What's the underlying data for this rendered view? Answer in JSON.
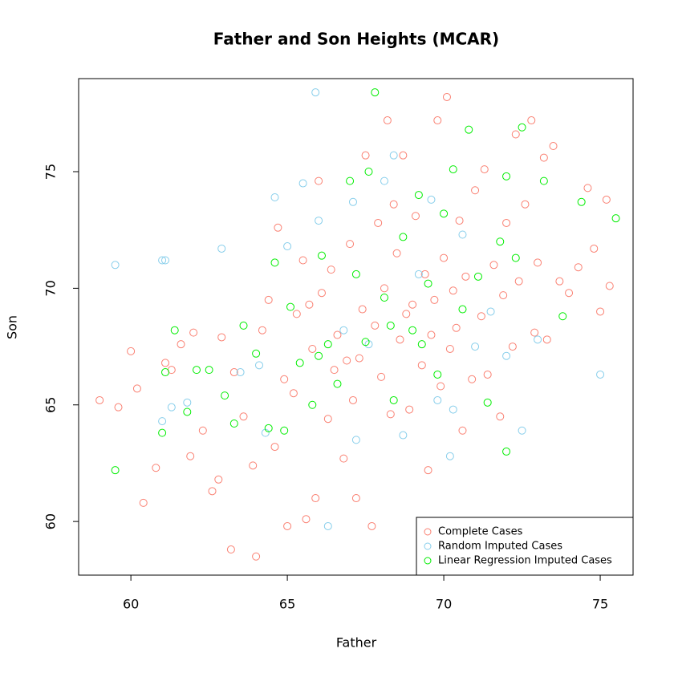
{
  "chart_data": {
    "type": "scatter",
    "title": "Father and Son Heights (MCAR)",
    "x_label": "Father",
    "y_label": "Son",
    "xlim": [
      58.33,
      76.05
    ],
    "ylim": [
      57.7,
      78.99
    ],
    "xticks": [
      60,
      65,
      70,
      75
    ],
    "yticks": [
      60,
      65,
      70,
      75
    ],
    "legend": "bottom-right",
    "series": [
      {
        "name": "Complete Cases",
        "color": "#FA8072",
        "x": [
          59.0,
          59.6,
          60.0,
          60.4,
          60.2,
          60.8,
          61.1,
          61.3,
          61.6,
          61.9,
          62.0,
          62.3,
          62.6,
          62.8,
          62.9,
          63.2,
          63.3,
          63.6,
          63.9,
          64.0,
          64.2,
          64.4,
          64.6,
          64.7,
          64.9,
          65.0,
          65.2,
          65.3,
          65.5,
          65.6,
          65.8,
          65.9,
          66.0,
          66.1,
          66.3,
          66.4,
          66.6,
          66.8,
          66.9,
          67.0,
          67.1,
          67.2,
          67.4,
          67.5,
          67.7,
          67.8,
          67.9,
          68.0,
          68.1,
          68.2,
          68.3,
          68.5,
          68.6,
          68.7,
          68.9,
          69.0,
          69.1,
          69.3,
          69.4,
          69.5,
          69.6,
          69.8,
          69.9,
          70.0,
          70.1,
          70.2,
          70.3,
          70.5,
          70.6,
          70.7,
          70.9,
          71.0,
          71.2,
          71.3,
          71.4,
          71.6,
          71.8,
          71.9,
          72.0,
          72.2,
          72.3,
          72.4,
          72.6,
          72.8,
          72.9,
          73.0,
          73.2,
          73.3,
          73.5,
          73.7,
          74.0,
          74.3,
          74.6,
          74.8,
          75.0,
          75.2,
          75.3,
          68.8,
          67.3,
          66.5,
          69.7,
          70.4,
          65.7,
          68.4
        ],
        "values": [
          65.2,
          64.9,
          67.3,
          60.8,
          65.7,
          62.3,
          66.8,
          66.5,
          67.6,
          62.8,
          68.1,
          63.9,
          61.3,
          61.8,
          67.9,
          58.8,
          66.4,
          64.5,
          62.4,
          58.5,
          68.2,
          69.5,
          63.2,
          72.6,
          66.1,
          59.8,
          65.5,
          68.9,
          71.2,
          60.1,
          67.4,
          61.0,
          74.6,
          69.8,
          64.4,
          70.8,
          68.0,
          62.7,
          66.9,
          71.9,
          65.2,
          61.0,
          69.1,
          75.7,
          59.8,
          68.4,
          72.8,
          66.2,
          70.0,
          77.2,
          64.6,
          71.5,
          67.8,
          75.7,
          64.8,
          69.3,
          73.1,
          66.7,
          70.6,
          62.2,
          68.0,
          77.2,
          65.8,
          71.3,
          78.2,
          67.4,
          69.9,
          72.9,
          63.9,
          70.5,
          66.1,
          74.2,
          68.8,
          75.1,
          66.3,
          71.0,
          64.5,
          69.7,
          72.8,
          67.5,
          76.6,
          70.3,
          73.6,
          77.2,
          68.1,
          71.1,
          75.6,
          67.8,
          76.1,
          70.3,
          69.8,
          70.9,
          74.3,
          71.7,
          69.0,
          73.8,
          70.1,
          68.9,
          67.0,
          66.5,
          69.5,
          68.3,
          69.3,
          73.6
        ]
      },
      {
        "name": "Random Imputed Cases",
        "color": "#87CEEB",
        "x": [
          59.5,
          61.0,
          61.1,
          61.0,
          61.3,
          61.8,
          62.9,
          63.5,
          64.3,
          64.6,
          65.0,
          65.5,
          65.9,
          66.0,
          66.3,
          66.8,
          67.1,
          67.6,
          68.1,
          68.4,
          68.7,
          69.2,
          69.8,
          70.2,
          70.6,
          71.0,
          71.5,
          72.0,
          72.5,
          73.0,
          75.0,
          67.2,
          69.6,
          64.1,
          70.3
        ],
        "values": [
          71.0,
          71.2,
          71.2,
          64.3,
          64.9,
          65.1,
          71.7,
          66.4,
          63.8,
          73.9,
          71.8,
          74.5,
          78.4,
          72.9,
          59.8,
          68.2,
          73.7,
          67.6,
          74.6,
          75.7,
          63.7,
          70.6,
          65.2,
          62.8,
          72.3,
          67.5,
          69.0,
          67.1,
          63.9,
          67.8,
          66.3,
          63.5,
          73.8,
          66.7,
          64.8
        ]
      },
      {
        "name": "Linear Regression Imputed Cases",
        "color": "#00EE00",
        "x": [
          59.5,
          61.0,
          61.1,
          61.4,
          61.8,
          62.1,
          62.5,
          63.0,
          63.3,
          63.6,
          64.0,
          64.4,
          64.6,
          64.9,
          65.1,
          65.4,
          65.8,
          66.1,
          66.3,
          66.6,
          67.0,
          67.2,
          67.5,
          67.6,
          67.8,
          68.1,
          68.4,
          68.7,
          69.0,
          69.2,
          69.5,
          69.8,
          70.0,
          70.3,
          70.6,
          70.8,
          71.1,
          71.4,
          71.8,
          72.0,
          72.0,
          72.3,
          72.5,
          73.2,
          73.8,
          74.4,
          75.5,
          69.3,
          68.3,
          66.0
        ],
        "values": [
          62.2,
          63.8,
          66.4,
          68.2,
          64.7,
          66.5,
          66.5,
          65.4,
          64.2,
          68.4,
          67.2,
          64.0,
          71.1,
          63.9,
          69.2,
          66.8,
          65.0,
          71.4,
          67.6,
          65.9,
          74.6,
          70.6,
          67.7,
          75.0,
          78.4,
          69.6,
          65.2,
          72.2,
          68.2,
          74.0,
          70.2,
          66.3,
          73.2,
          75.1,
          69.1,
          76.8,
          70.5,
          65.1,
          72.0,
          74.8,
          63.0,
          71.3,
          76.9,
          74.6,
          68.8,
          73.7,
          73.0,
          67.6,
          68.4,
          67.1
        ]
      }
    ]
  }
}
